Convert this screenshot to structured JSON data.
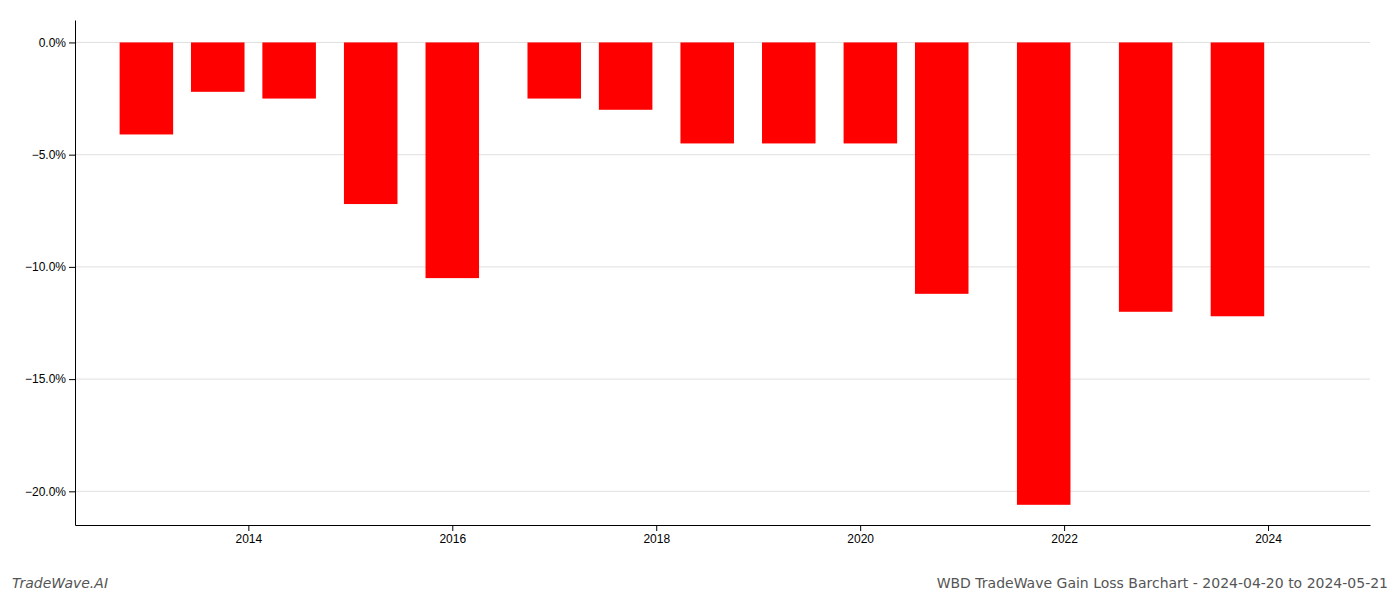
{
  "chart_data": {
    "type": "bar",
    "title": "WBD TradeWave Gain Loss Barchart - 2024-04-20 to 2024-05-21",
    "annotations": [
      {
        "text": "TradeWave.AI"
      }
    ],
    "x": [
      2013,
      2013.7,
      2014.4,
      2015.2,
      2016.0,
      2017.0,
      2017.7,
      2018.5,
      2019.3,
      2020.1,
      2020.8,
      2021.8,
      2022.8,
      2023.7
    ],
    "values": [
      -4.1,
      -2.2,
      -2.5,
      -7.2,
      -10.5,
      -2.5,
      -3.0,
      -4.5,
      -4.5,
      -4.5,
      -11.2,
      -20.6,
      -12.0,
      -12.2
    ],
    "color": "#ff0000",
    "xlim": [
      2012.3,
      2025.0
    ],
    "xticks": [
      2014,
      2016,
      2018,
      2020,
      2022,
      2024
    ],
    "ylim": [
      -21.5,
      1.0
    ],
    "yticks": [
      {
        "value": 0.0,
        "label": "0.0%"
      },
      {
        "value": -5.0,
        "label": "−5.0%"
      },
      {
        "value": -10.0,
        "label": "−10.0%"
      },
      {
        "value": -15.0,
        "label": "−15.0%"
      },
      {
        "value": -20.0,
        "label": "−20.0%"
      }
    ],
    "grid": true
  }
}
